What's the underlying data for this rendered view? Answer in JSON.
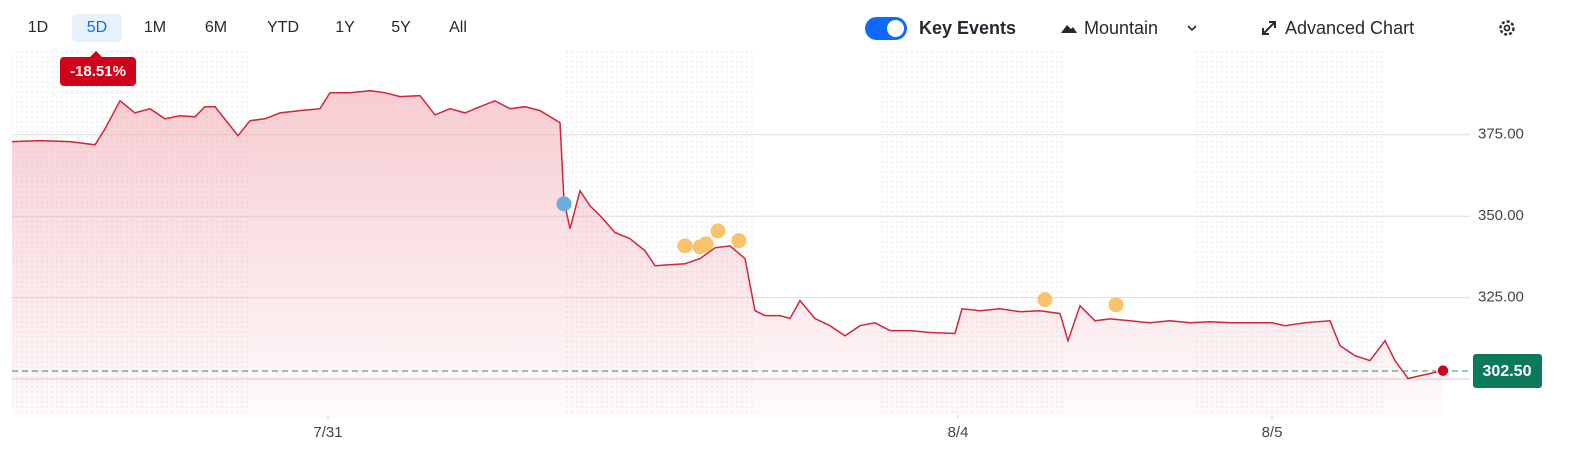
{
  "toolbar": {
    "ranges": [
      "1D",
      "5D",
      "1M",
      "6M",
      "YTD",
      "1Y",
      "5Y",
      "All"
    ],
    "active_range": "5D",
    "change": "-18.51%",
    "key_events": "Key Events",
    "chart_style": "Mountain",
    "advanced": "Advanced Chart"
  },
  "chart_data": {
    "type": "line",
    "color": "#d0263a",
    "grid": true,
    "x": [
      0,
      28,
      58,
      83,
      93,
      108,
      123,
      138,
      153,
      168,
      183,
      193,
      203,
      218,
      226,
      238,
      253,
      268,
      288,
      308,
      318,
      338,
      358,
      373,
      388,
      408,
      423,
      438,
      453,
      468,
      483,
      498,
      513,
      528,
      548,
      552,
      558,
      568,
      578,
      588,
      603,
      618,
      633,
      643,
      658,
      673,
      688,
      703,
      718,
      733,
      743,
      753,
      768,
      778,
      788,
      803,
      818,
      833,
      848,
      863,
      878,
      898,
      918,
      943,
      950,
      968,
      988,
      1008,
      1028,
      1048,
      1056,
      1068,
      1083,
      1098,
      1118,
      1138,
      1158,
      1178,
      1198,
      1218,
      1238,
      1260,
      1273,
      1293,
      1318,
      1328,
      1343,
      1358,
      1373,
      1383,
      1396,
      1413,
      1431
    ],
    "values": [
      372.9,
      373.2,
      372.9,
      371.9,
      376.8,
      385.4,
      381.7,
      383.0,
      379.9,
      380.8,
      380.5,
      383.6,
      383.6,
      377.8,
      374.7,
      379.3,
      379.9,
      381.7,
      382.4,
      383.0,
      387.9,
      387.9,
      388.5,
      387.9,
      386.7,
      387.0,
      381.1,
      383.0,
      381.7,
      383.6,
      385.4,
      383.0,
      383.6,
      382.4,
      378.7,
      354.8,
      346.2,
      357.8,
      353.2,
      350.2,
      345.0,
      343.1,
      339.4,
      334.8,
      335.1,
      335.4,
      337.0,
      340.3,
      340.9,
      337.0,
      321.0,
      319.5,
      319.5,
      318.6,
      324.1,
      318.6,
      316.4,
      313.3,
      316.4,
      317.3,
      314.9,
      314.9,
      314.3,
      314.0,
      321.6,
      321.0,
      321.6,
      320.7,
      321.0,
      320.1,
      311.8,
      322.5,
      317.9,
      318.5,
      317.9,
      317.3,
      317.9,
      317.3,
      317.6,
      317.3,
      317.3,
      317.3,
      316.4,
      317.3,
      317.9,
      310.3,
      307.2,
      305.7,
      311.8,
      305.7,
      300.2,
      301.4,
      302.6
    ],
    "key_events": {
      "x": [
        552,
        673,
        688,
        694,
        706,
        727,
        1033,
        1104
      ],
      "values": [
        353.8,
        340.9,
        340.6,
        341.5,
        345.5,
        342.5,
        324.4,
        322.8
      ],
      "colors": [
        "#6aaee0",
        "#f8c36a",
        "#f8c36a",
        "#f8c36a",
        "#f8c36a",
        "#f8c36a",
        "#f8c36a",
        "#f8c36a"
      ]
    },
    "last_price": 302.5,
    "last_price_label": "302.50",
    "xlim": [
      0,
      1453
    ],
    "ylim": [
      289,
      401
    ],
    "xticks": [
      {
        "value": 316,
        "label": "7/31"
      },
      {
        "value": 946,
        "label": "8/4"
      },
      {
        "value": 1260,
        "label": "8/5"
      }
    ],
    "yticks": [
      {
        "value": 325,
        "label": "325.00"
      },
      {
        "value": 350,
        "label": "350.00"
      },
      {
        "value": 375,
        "label": "375.00"
      }
    ]
  }
}
